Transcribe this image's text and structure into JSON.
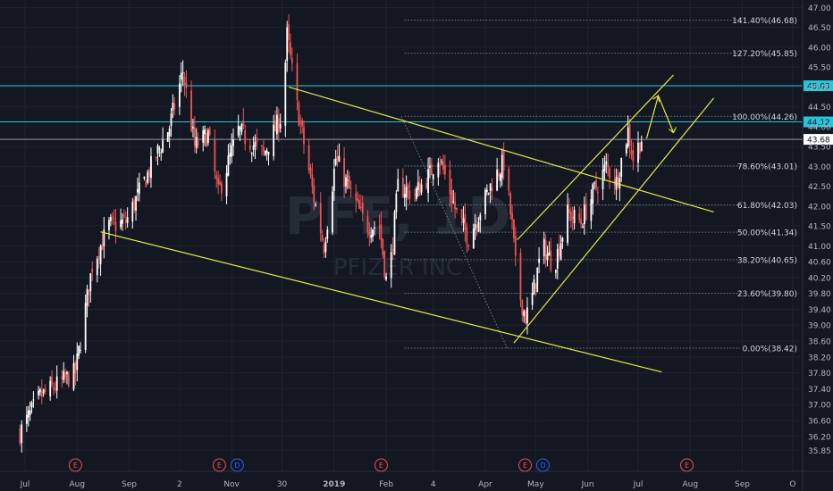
{
  "chart_data": {
    "type": "candlestick",
    "ticker": "PFE",
    "company": "PFIZER INC",
    "watermark": "PFE, 1D",
    "up_color": "#ffffff",
    "down_color": "#ef5350",
    "background": "#131722",
    "grid": true,
    "ylim": [
      35.7,
      47.1
    ],
    "y_ticks": [
      "35.85",
      "36.20",
      "36.60",
      "37.00",
      "37.40",
      "37.80",
      "38.20",
      "38.60",
      "39.00",
      "39.40",
      "39.80",
      "40.20",
      "40.60",
      "41.00",
      "41.50",
      "42.00",
      "42.50",
      "43.00",
      "43.50",
      "44.00",
      "44.50",
      "45.00",
      "45.50",
      "46.00",
      "46.50",
      "47.00"
    ],
    "x_ticks": [
      {
        "label": "Jul",
        "date": "2018-07-01"
      },
      {
        "label": "Aug",
        "date": "2018-08-01"
      },
      {
        "label": "Sep",
        "date": "2018-09-01"
      },
      {
        "label": "2",
        "date": "2018-10-01"
      },
      {
        "label": "Nov",
        "date": "2018-11-01"
      },
      {
        "label": "30",
        "date": "2018-12-01"
      },
      {
        "label": "2019",
        "date": "2019-01-01"
      },
      {
        "label": "Feb",
        "date": "2019-02-01"
      },
      {
        "label": "4",
        "date": "2019-03-01"
      },
      {
        "label": "Apr",
        "date": "2019-04-01"
      },
      {
        "label": "May",
        "date": "2019-05-01"
      },
      {
        "label": "Jun",
        "date": "2019-06-01"
      },
      {
        "label": "Jul",
        "date": "2019-07-01"
      },
      {
        "label": "Aug",
        "date": "2019-08-01"
      },
      {
        "label": "Sep",
        "date": "2019-09-01"
      },
      {
        "label": "O",
        "date": "2019-10-01"
      }
    ],
    "fib_levels": [
      {
        "label": "141.40%(46.68)",
        "value": 46.68
      },
      {
        "label": "127.20%(45.85)",
        "value": 45.85
      },
      {
        "label": "100.00%(44.26)",
        "value": 44.26
      },
      {
        "label": "78.60%(43.01)",
        "value": 43.01
      },
      {
        "label": "61.80%(42.03)",
        "value": 42.03
      },
      {
        "label": "50.00%(41.34)",
        "value": 41.34
      },
      {
        "label": "38.20%(40.65)",
        "value": 40.65
      },
      {
        "label": "23.60%(39.80)",
        "value": 39.8
      },
      {
        "label": "0.00%(38.42)",
        "value": 38.42
      }
    ],
    "horizontal_lines": [
      {
        "label": "45.03",
        "value": 45.03,
        "color": "#26c6da",
        "badge": "#26c6da"
      },
      {
        "label": "44.12",
        "value": 44.12,
        "color": "#26c6da",
        "badge": "#26c6da"
      },
      {
        "label": "43.68",
        "value": 43.68,
        "color": "#9598a1",
        "badge": "#ffffff"
      }
    ],
    "trend_lines": [
      {
        "name": "upper-channel",
        "from": {
          "date": "2018-12-05",
          "price": 45.0
        },
        "to": {
          "date": "2019-08-15",
          "price": 41.85
        },
        "color": "#e6e64a"
      },
      {
        "name": "lower-channel",
        "from": {
          "date": "2018-08-15",
          "price": 41.35
        },
        "to": {
          "date": "2019-07-15",
          "price": 37.82
        },
        "color": "#e6e64a"
      },
      {
        "name": "rising-upper",
        "from": {
          "date": "2019-04-20",
          "price": 41.15
        },
        "to": {
          "date": "2019-07-22",
          "price": 45.3
        },
        "color": "#e6e64a"
      },
      {
        "name": "rising-lower",
        "from": {
          "date": "2019-04-18",
          "price": 38.55
        },
        "to": {
          "date": "2019-08-15",
          "price": 44.72
        },
        "color": "#e6e64a"
      }
    ],
    "events": [
      {
        "date": "2018-07-31",
        "types": [
          "E"
        ]
      },
      {
        "date": "2018-10-30",
        "types": [
          "E",
          "D"
        ]
      },
      {
        "date": "2019-01-29",
        "types": [
          "E"
        ]
      },
      {
        "date": "2019-04-30",
        "types": [
          "E",
          "D"
        ]
      },
      {
        "date": "2019-07-30",
        "types": [
          "E"
        ]
      }
    ],
    "key_points": [
      {
        "date": "2018-06-28",
        "price": 36.3
      },
      {
        "date": "2018-07-10",
        "price": 37.2
      },
      {
        "date": "2018-07-31",
        "price": 37.8
      },
      {
        "date": "2018-08-10",
        "price": 40.5
      },
      {
        "date": "2018-08-20",
        "price": 41.5
      },
      {
        "date": "2018-08-30",
        "price": 41.6
      },
      {
        "date": "2018-09-12",
        "price": 42.8
      },
      {
        "date": "2018-09-25",
        "price": 44.0
      },
      {
        "date": "2018-10-03",
        "price": 45.4
      },
      {
        "date": "2018-10-10",
        "price": 43.5
      },
      {
        "date": "2018-10-18",
        "price": 43.8
      },
      {
        "date": "2018-10-24",
        "price": 42.3
      },
      {
        "date": "2018-11-05",
        "price": 43.9
      },
      {
        "date": "2018-11-20",
        "price": 43.3
      },
      {
        "date": "2018-12-01",
        "price": 44.3
      },
      {
        "date": "2018-12-04",
        "price": 46.3
      },
      {
        "date": "2018-12-10",
        "price": 44.5
      },
      {
        "date": "2018-12-20",
        "price": 42.2
      },
      {
        "date": "2018-12-26",
        "price": 41.0
      },
      {
        "date": "2019-01-02",
        "price": 43.2
      },
      {
        "date": "2019-01-10",
        "price": 42.4
      },
      {
        "date": "2019-01-20",
        "price": 41.5
      },
      {
        "date": "2019-01-28",
        "price": 41.5
      },
      {
        "date": "2019-02-02",
        "price": 39.8
      },
      {
        "date": "2019-02-08",
        "price": 42.5
      },
      {
        "date": "2019-02-18",
        "price": 42.3
      },
      {
        "date": "2019-02-27",
        "price": 42.8
      },
      {
        "date": "2019-03-04",
        "price": 43.3
      },
      {
        "date": "2019-03-10",
        "price": 42.5
      },
      {
        "date": "2019-03-15",
        "price": 41.8
      },
      {
        "date": "2019-03-22",
        "price": 41.2
      },
      {
        "date": "2019-03-30",
        "price": 42.0
      },
      {
        "date": "2019-04-05",
        "price": 42.6
      },
      {
        "date": "2019-04-12",
        "price": 43.1
      },
      {
        "date": "2019-04-17",
        "price": 41.5
      },
      {
        "date": "2019-04-20",
        "price": 40.0
      },
      {
        "date": "2019-04-25",
        "price": 39.2
      },
      {
        "date": "2019-04-28",
        "price": 39.5
      },
      {
        "date": "2019-05-05",
        "price": 41.0
      },
      {
        "date": "2019-05-12",
        "price": 40.5
      },
      {
        "date": "2019-05-20",
        "price": 41.8
      },
      {
        "date": "2019-05-28",
        "price": 41.6
      },
      {
        "date": "2019-06-05",
        "price": 42.4
      },
      {
        "date": "2019-06-12",
        "price": 43.0
      },
      {
        "date": "2019-06-18",
        "price": 42.6
      },
      {
        "date": "2019-06-25",
        "price": 43.9
      },
      {
        "date": "2019-06-28",
        "price": 43.2
      },
      {
        "date": "2019-07-03",
        "price": 43.7
      }
    ]
  }
}
